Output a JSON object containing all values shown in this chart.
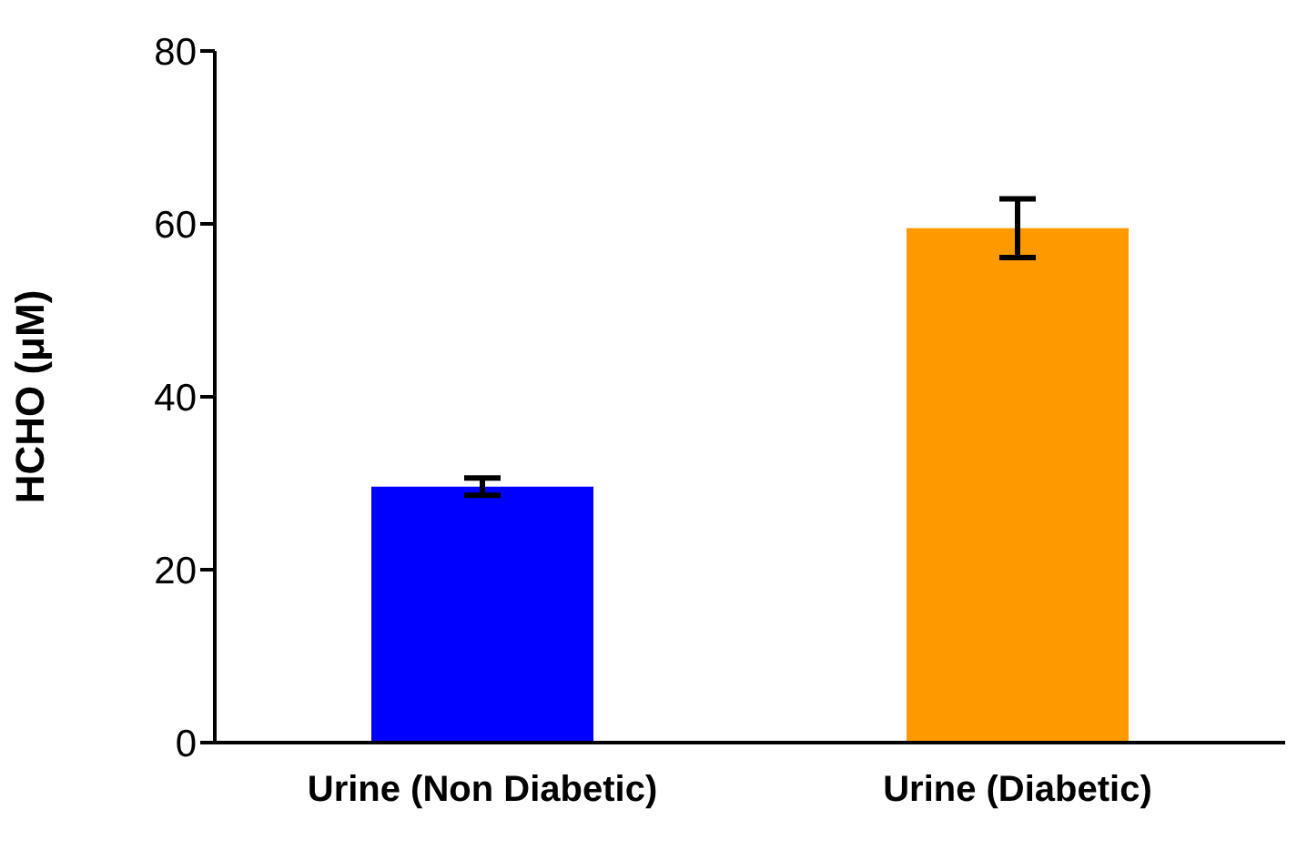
{
  "chart_data": {
    "type": "bar",
    "ylabel": "HCHO (μM)",
    "categories": [
      "Urine (Non Diabetic)",
      "Urine (Diabetic)"
    ],
    "values": [
      29.6,
      59.5
    ],
    "colors": [
      "#0000ff",
      "#ff9900"
    ],
    "errors": [
      1.0,
      3.4
    ],
    "ylim": [
      0,
      80
    ],
    "yticks": [
      0,
      20,
      40,
      60,
      80
    ],
    "grid": false,
    "legend": false
  }
}
